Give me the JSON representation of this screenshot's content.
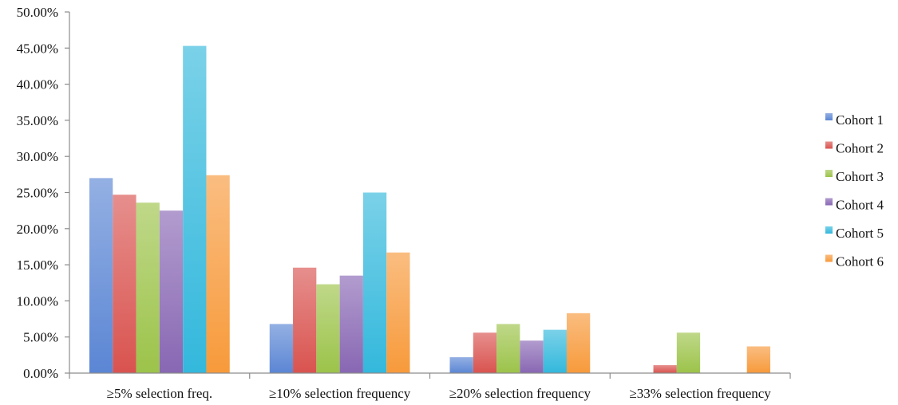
{
  "chart_data": {
    "type": "bar",
    "title": "",
    "xlabel": "",
    "ylabel": "",
    "ylim": [
      0,
      50
    ],
    "y_tick_labels": [
      "0.00%",
      "5.00%",
      "10.00%",
      "15.00%",
      "20.00%",
      "25.00%",
      "30.00%",
      "35.00%",
      "40.00%",
      "45.00%",
      "50.00%"
    ],
    "y_unit": "%",
    "grid": false,
    "legend_position": "right",
    "categories": [
      "≥5% selection freq.",
      "≥10% selection frequency",
      "≥20% selection frequency",
      "≥33% selection frequency"
    ],
    "series": [
      {
        "name": "Cohort 1",
        "color": "#5B86D4",
        "values": [
          27.0,
          6.8,
          2.2,
          0.0
        ]
      },
      {
        "name": "Cohort 2",
        "color": "#D9534F",
        "values": [
          24.7,
          14.6,
          5.6,
          1.1
        ]
      },
      {
        "name": "Cohort 3",
        "color": "#9CC34A",
        "values": [
          23.6,
          12.3,
          6.8,
          5.6
        ]
      },
      {
        "name": "Cohort 4",
        "color": "#8867B3",
        "values": [
          22.5,
          13.5,
          4.5,
          0.0
        ]
      },
      {
        "name": "Cohort 5",
        "color": "#33B8DC",
        "values": [
          45.3,
          25.0,
          6.0,
          0.0
        ]
      },
      {
        "name": "Cohort 6",
        "color": "#F79A3B",
        "values": [
          27.4,
          16.7,
          8.3,
          3.7
        ]
      }
    ]
  }
}
